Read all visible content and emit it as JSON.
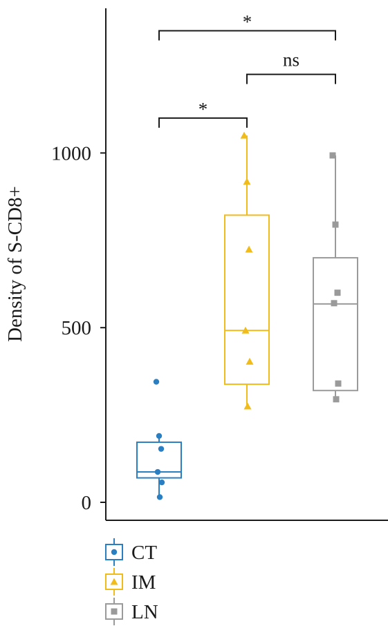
{
  "chart_data": {
    "type": "box",
    "ylabel": "Density of S-CD8+",
    "xlabel": "",
    "title": "",
    "ylim": [
      -50,
      1410
    ],
    "yticks": [
      0,
      500,
      1000
    ],
    "ytick_labels": [
      "0",
      "500",
      "1000"
    ],
    "categories": [
      "CT",
      "IM",
      "LN"
    ],
    "series": [
      {
        "name": "CT",
        "color": "#2a7fc3",
        "marker": "circle",
        "box": {
          "whisker_low": 15,
          "q1": 70,
          "median": 87,
          "q3": 172,
          "whisker_high": 190
        },
        "points": [
          345,
          190,
          153,
          87,
          57,
          15
        ]
      },
      {
        "name": "IM",
        "color": "#efbc1c",
        "marker": "triangle",
        "box": {
          "whisker_low": 275,
          "q1": 338,
          "median": 492,
          "q3": 822,
          "whisker_high": 1050
        },
        "points": [
          1050,
          918,
          724,
          492,
          403,
          275
        ]
      },
      {
        "name": "LN",
        "color": "#9a9a9a",
        "marker": "square",
        "box": {
          "whisker_low": 295,
          "q1": 320,
          "median": 568,
          "q3": 700,
          "whisker_high": 993
        },
        "points": [
          993,
          795,
          600,
          570,
          340,
          295
        ]
      }
    ],
    "significance": [
      {
        "from": "CT",
        "to": "IM",
        "label": "*",
        "y": 1100
      },
      {
        "from": "IM",
        "to": "LN",
        "label": "ns",
        "y": 1225
      },
      {
        "from": "CT",
        "to": "LN",
        "label": "*",
        "y": 1350
      }
    ],
    "legend": {
      "position": "bottom-left",
      "entries": [
        "CT",
        "IM",
        "LN"
      ]
    },
    "grid": false
  }
}
